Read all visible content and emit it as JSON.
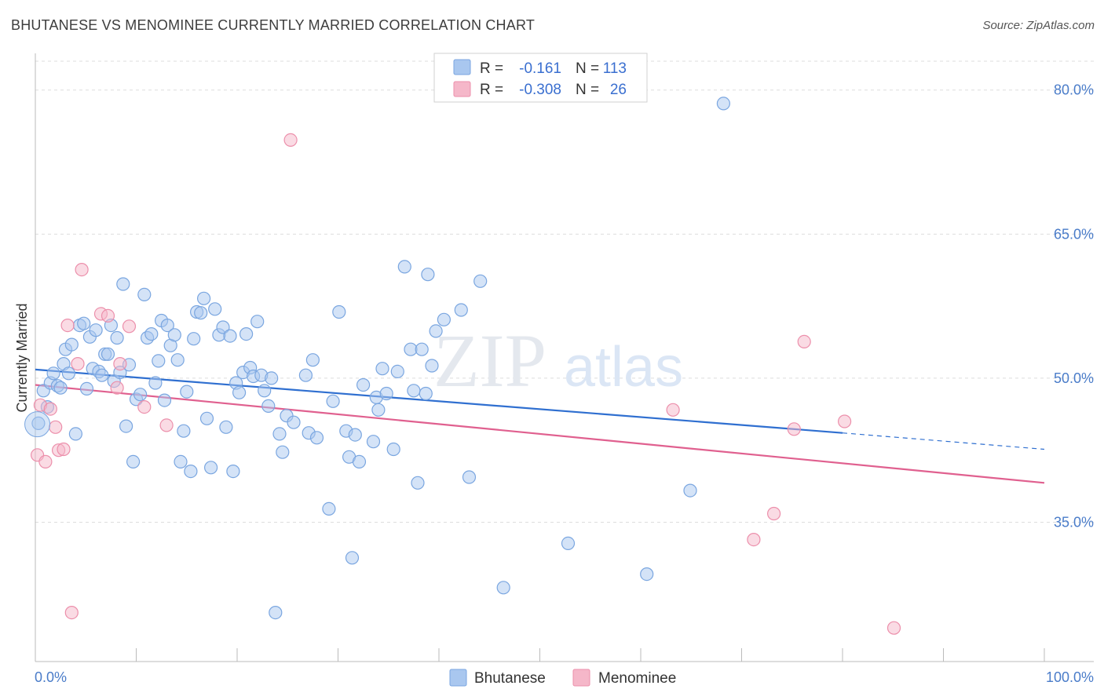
{
  "header": {
    "title": "BHUTANESE VS MENOMINEE CURRENTLY MARRIED CORRELATION CHART",
    "source": "Source: ZipAtlas.com"
  },
  "watermark": {
    "zip": "ZIP",
    "atlas": "atlas"
  },
  "legend_top": {
    "rows": [
      {
        "r_label": "R =",
        "r_value": "-0.161",
        "n_label": "N =",
        "n_value": "113",
        "color": "#a9c7ef"
      },
      {
        "r_label": "R =",
        "r_value": "-0.308",
        "n_label": "N =",
        "n_value": "26",
        "color": "#f5b7c9"
      }
    ]
  },
  "legend_bottom": {
    "items": [
      "Bhutanese",
      "Menominee"
    ]
  },
  "colors": {
    "blue_fill": "#a9c7ef",
    "blue_stroke": "#7aa6e0",
    "blue_line": "#2f6fd0",
    "pink_fill": "#f5b7c9",
    "pink_stroke": "#ec8fab",
    "pink_line": "#e0608f",
    "grid": "#dddddd",
    "tick_text": "#4a7cc9"
  },
  "chart_data": {
    "type": "scatter",
    "title": "BHUTANESE VS MENOMINEE CURRENTLY MARRIED CORRELATION CHART",
    "xlabel": "",
    "ylabel": "Currently Married",
    "xlim": [
      0,
      100
    ],
    "ylim": [
      20.5,
      83
    ],
    "x_tick_labels": [
      "0.0%",
      "100.0%"
    ],
    "y_ticks": [
      35,
      50,
      65,
      80
    ],
    "y_tick_labels": [
      "35.0%",
      "50.0%",
      "65.0%",
      "80.0%"
    ],
    "series": [
      {
        "name": "Bhutanese",
        "r": -0.161,
        "n": 113,
        "trend": {
          "x0": 0,
          "y0": 50.9,
          "x1": 80,
          "y1": 44.3,
          "dashed_to_x": 100,
          "dashed_to_y": 42.6
        },
        "points": [
          [
            0.3,
            45.3
          ],
          [
            0.8,
            48.7
          ],
          [
            1.2,
            47.0
          ],
          [
            1.5,
            49.5
          ],
          [
            1.8,
            50.5
          ],
          [
            2.2,
            49.2
          ],
          [
            2.5,
            49.0
          ],
          [
            2.8,
            51.5
          ],
          [
            3.0,
            53.0
          ],
          [
            3.3,
            50.5
          ],
          [
            3.6,
            53.5
          ],
          [
            4.0,
            44.2
          ],
          [
            4.4,
            55.5
          ],
          [
            4.8,
            55.7
          ],
          [
            5.1,
            48.9
          ],
          [
            5.4,
            54.3
          ],
          [
            5.7,
            51.0
          ],
          [
            6.0,
            55.0
          ],
          [
            6.3,
            50.7
          ],
          [
            6.6,
            50.3
          ],
          [
            6.9,
            52.5
          ],
          [
            7.2,
            52.5
          ],
          [
            7.5,
            55.5
          ],
          [
            7.8,
            49.7
          ],
          [
            8.1,
            54.2
          ],
          [
            8.4,
            50.6
          ],
          [
            8.7,
            59.8
          ],
          [
            9.0,
            45.0
          ],
          [
            9.3,
            51.4
          ],
          [
            9.7,
            41.3
          ],
          [
            10.0,
            47.8
          ],
          [
            10.4,
            48.3
          ],
          [
            10.8,
            58.7
          ],
          [
            11.1,
            54.2
          ],
          [
            11.5,
            54.6
          ],
          [
            11.9,
            49.5
          ],
          [
            12.2,
            51.8
          ],
          [
            12.5,
            56.0
          ],
          [
            12.8,
            47.7
          ],
          [
            13.1,
            55.5
          ],
          [
            13.4,
            53.4
          ],
          [
            13.8,
            54.5
          ],
          [
            14.1,
            51.9
          ],
          [
            14.4,
            41.3
          ],
          [
            14.7,
            44.5
          ],
          [
            15.0,
            48.6
          ],
          [
            15.4,
            40.3
          ],
          [
            15.7,
            54.1
          ],
          [
            16.0,
            56.9
          ],
          [
            16.4,
            56.8
          ],
          [
            16.7,
            58.3
          ],
          [
            17.0,
            45.8
          ],
          [
            17.4,
            40.7
          ],
          [
            17.8,
            57.2
          ],
          [
            18.2,
            54.5
          ],
          [
            18.6,
            55.3
          ],
          [
            18.9,
            44.9
          ],
          [
            19.3,
            54.4
          ],
          [
            19.6,
            40.3
          ],
          [
            19.9,
            49.5
          ],
          [
            20.2,
            48.5
          ],
          [
            20.6,
            50.6
          ],
          [
            20.9,
            54.6
          ],
          [
            21.3,
            51.1
          ],
          [
            21.6,
            50.2
          ],
          [
            22.0,
            55.9
          ],
          [
            22.4,
            50.3
          ],
          [
            22.7,
            48.7
          ],
          [
            23.1,
            47.1
          ],
          [
            23.4,
            50.0
          ],
          [
            23.8,
            25.6
          ],
          [
            24.2,
            44.2
          ],
          [
            24.5,
            42.3
          ],
          [
            24.9,
            46.1
          ],
          [
            25.6,
            45.4
          ],
          [
            26.8,
            50.3
          ],
          [
            27.1,
            44.3
          ],
          [
            27.5,
            51.9
          ],
          [
            27.9,
            43.8
          ],
          [
            29.1,
            36.4
          ],
          [
            29.5,
            47.6
          ],
          [
            30.1,
            56.9
          ],
          [
            30.8,
            44.5
          ],
          [
            31.1,
            41.8
          ],
          [
            31.4,
            31.3
          ],
          [
            31.7,
            44.1
          ],
          [
            32.1,
            41.3
          ],
          [
            32.5,
            49.3
          ],
          [
            33.5,
            43.4
          ],
          [
            33.8,
            48.0
          ],
          [
            34.0,
            46.7
          ],
          [
            34.4,
            51.0
          ],
          [
            34.8,
            48.4
          ],
          [
            35.5,
            42.6
          ],
          [
            35.9,
            50.7
          ],
          [
            36.6,
            61.6
          ],
          [
            37.2,
            53.0
          ],
          [
            37.5,
            48.7
          ],
          [
            37.9,
            39.1
          ],
          [
            38.3,
            53.0
          ],
          [
            38.7,
            48.4
          ],
          [
            38.9,
            60.8
          ],
          [
            39.3,
            51.3
          ],
          [
            39.7,
            54.9
          ],
          [
            40.5,
            56.1
          ],
          [
            42.2,
            57.1
          ],
          [
            43.0,
            39.7
          ],
          [
            44.1,
            60.1
          ],
          [
            46.4,
            28.2
          ],
          [
            52.8,
            32.8
          ],
          [
            60.6,
            29.6
          ],
          [
            64.9,
            38.3
          ],
          [
            68.2,
            78.6
          ]
        ]
      },
      {
        "name": "Menominee",
        "r": -0.308,
        "n": 26,
        "trend": {
          "x0": 0,
          "y0": 49.3,
          "x1": 100,
          "y1": 39.1
        },
        "points": [
          [
            0.2,
            42.0
          ],
          [
            0.5,
            47.2
          ],
          [
            1.0,
            41.3
          ],
          [
            1.5,
            46.8
          ],
          [
            2.0,
            44.9
          ],
          [
            2.3,
            42.5
          ],
          [
            2.8,
            42.6
          ],
          [
            3.2,
            55.5
          ],
          [
            3.6,
            25.6
          ],
          [
            4.2,
            51.5
          ],
          [
            4.6,
            61.3
          ],
          [
            6.5,
            56.7
          ],
          [
            7.2,
            56.5
          ],
          [
            8.1,
            49.0
          ],
          [
            8.4,
            51.5
          ],
          [
            9.3,
            55.4
          ],
          [
            10.8,
            47.0
          ],
          [
            13.0,
            45.1
          ],
          [
            25.3,
            74.8
          ],
          [
            63.2,
            46.7
          ],
          [
            71.2,
            33.2
          ],
          [
            73.2,
            35.9
          ],
          [
            75.2,
            44.7
          ],
          [
            76.2,
            53.8
          ],
          [
            80.2,
            45.5
          ],
          [
            85.1,
            24.0
          ]
        ]
      }
    ]
  }
}
